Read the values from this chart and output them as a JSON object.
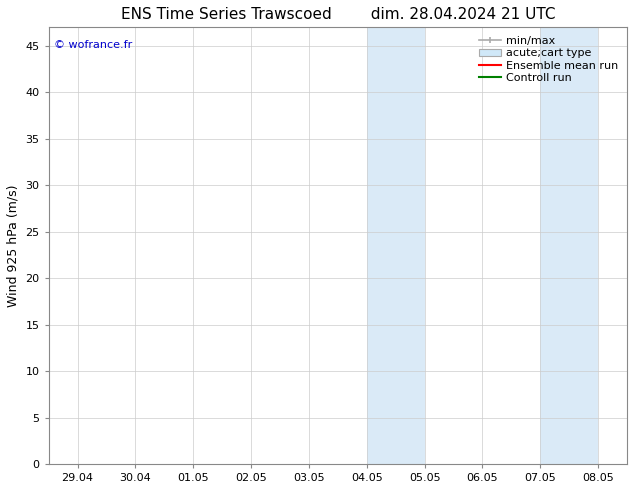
{
  "title_left": "ENS Time Series Trawscoed",
  "title_right": "dim. 28.04.2024 21 UTC",
  "ylabel": "Wind 925 hPa (m/s)",
  "watermark": "© wofrance.fr",
  "xtick_labels": [
    "29.04",
    "30.04",
    "01.05",
    "02.05",
    "03.05",
    "04.05",
    "05.05",
    "06.05",
    "07.05",
    "08.05"
  ],
  "ylim": [
    0,
    47
  ],
  "ytick_values": [
    0,
    5,
    10,
    15,
    20,
    25,
    30,
    35,
    40,
    45
  ],
  "shaded_regions": [
    {
      "xstart": 5.0,
      "xend": 5.5,
      "color": "#daeaf7"
    },
    {
      "xstart": 5.5,
      "xend": 6.0,
      "color": "#daeaf7"
    },
    {
      "xstart": 8.0,
      "xend": 8.5,
      "color": "#daeaf7"
    },
    {
      "xstart": 8.5,
      "xend": 9.0,
      "color": "#daeaf7"
    }
  ],
  "legend_labels": [
    "min/max",
    "acute;cart type",
    "Ensemble mean run",
    "Controll run"
  ],
  "legend_colors": [
    "#aaaaaa",
    "#d0e8f8",
    "red",
    "green"
  ],
  "background_color": "#ffffff",
  "plot_bg_color": "#ffffff",
  "grid_color": "#cccccc",
  "watermark_color": "#0000cc",
  "title_fontsize": 11,
  "label_fontsize": 9,
  "tick_fontsize": 8,
  "legend_fontsize": 8
}
